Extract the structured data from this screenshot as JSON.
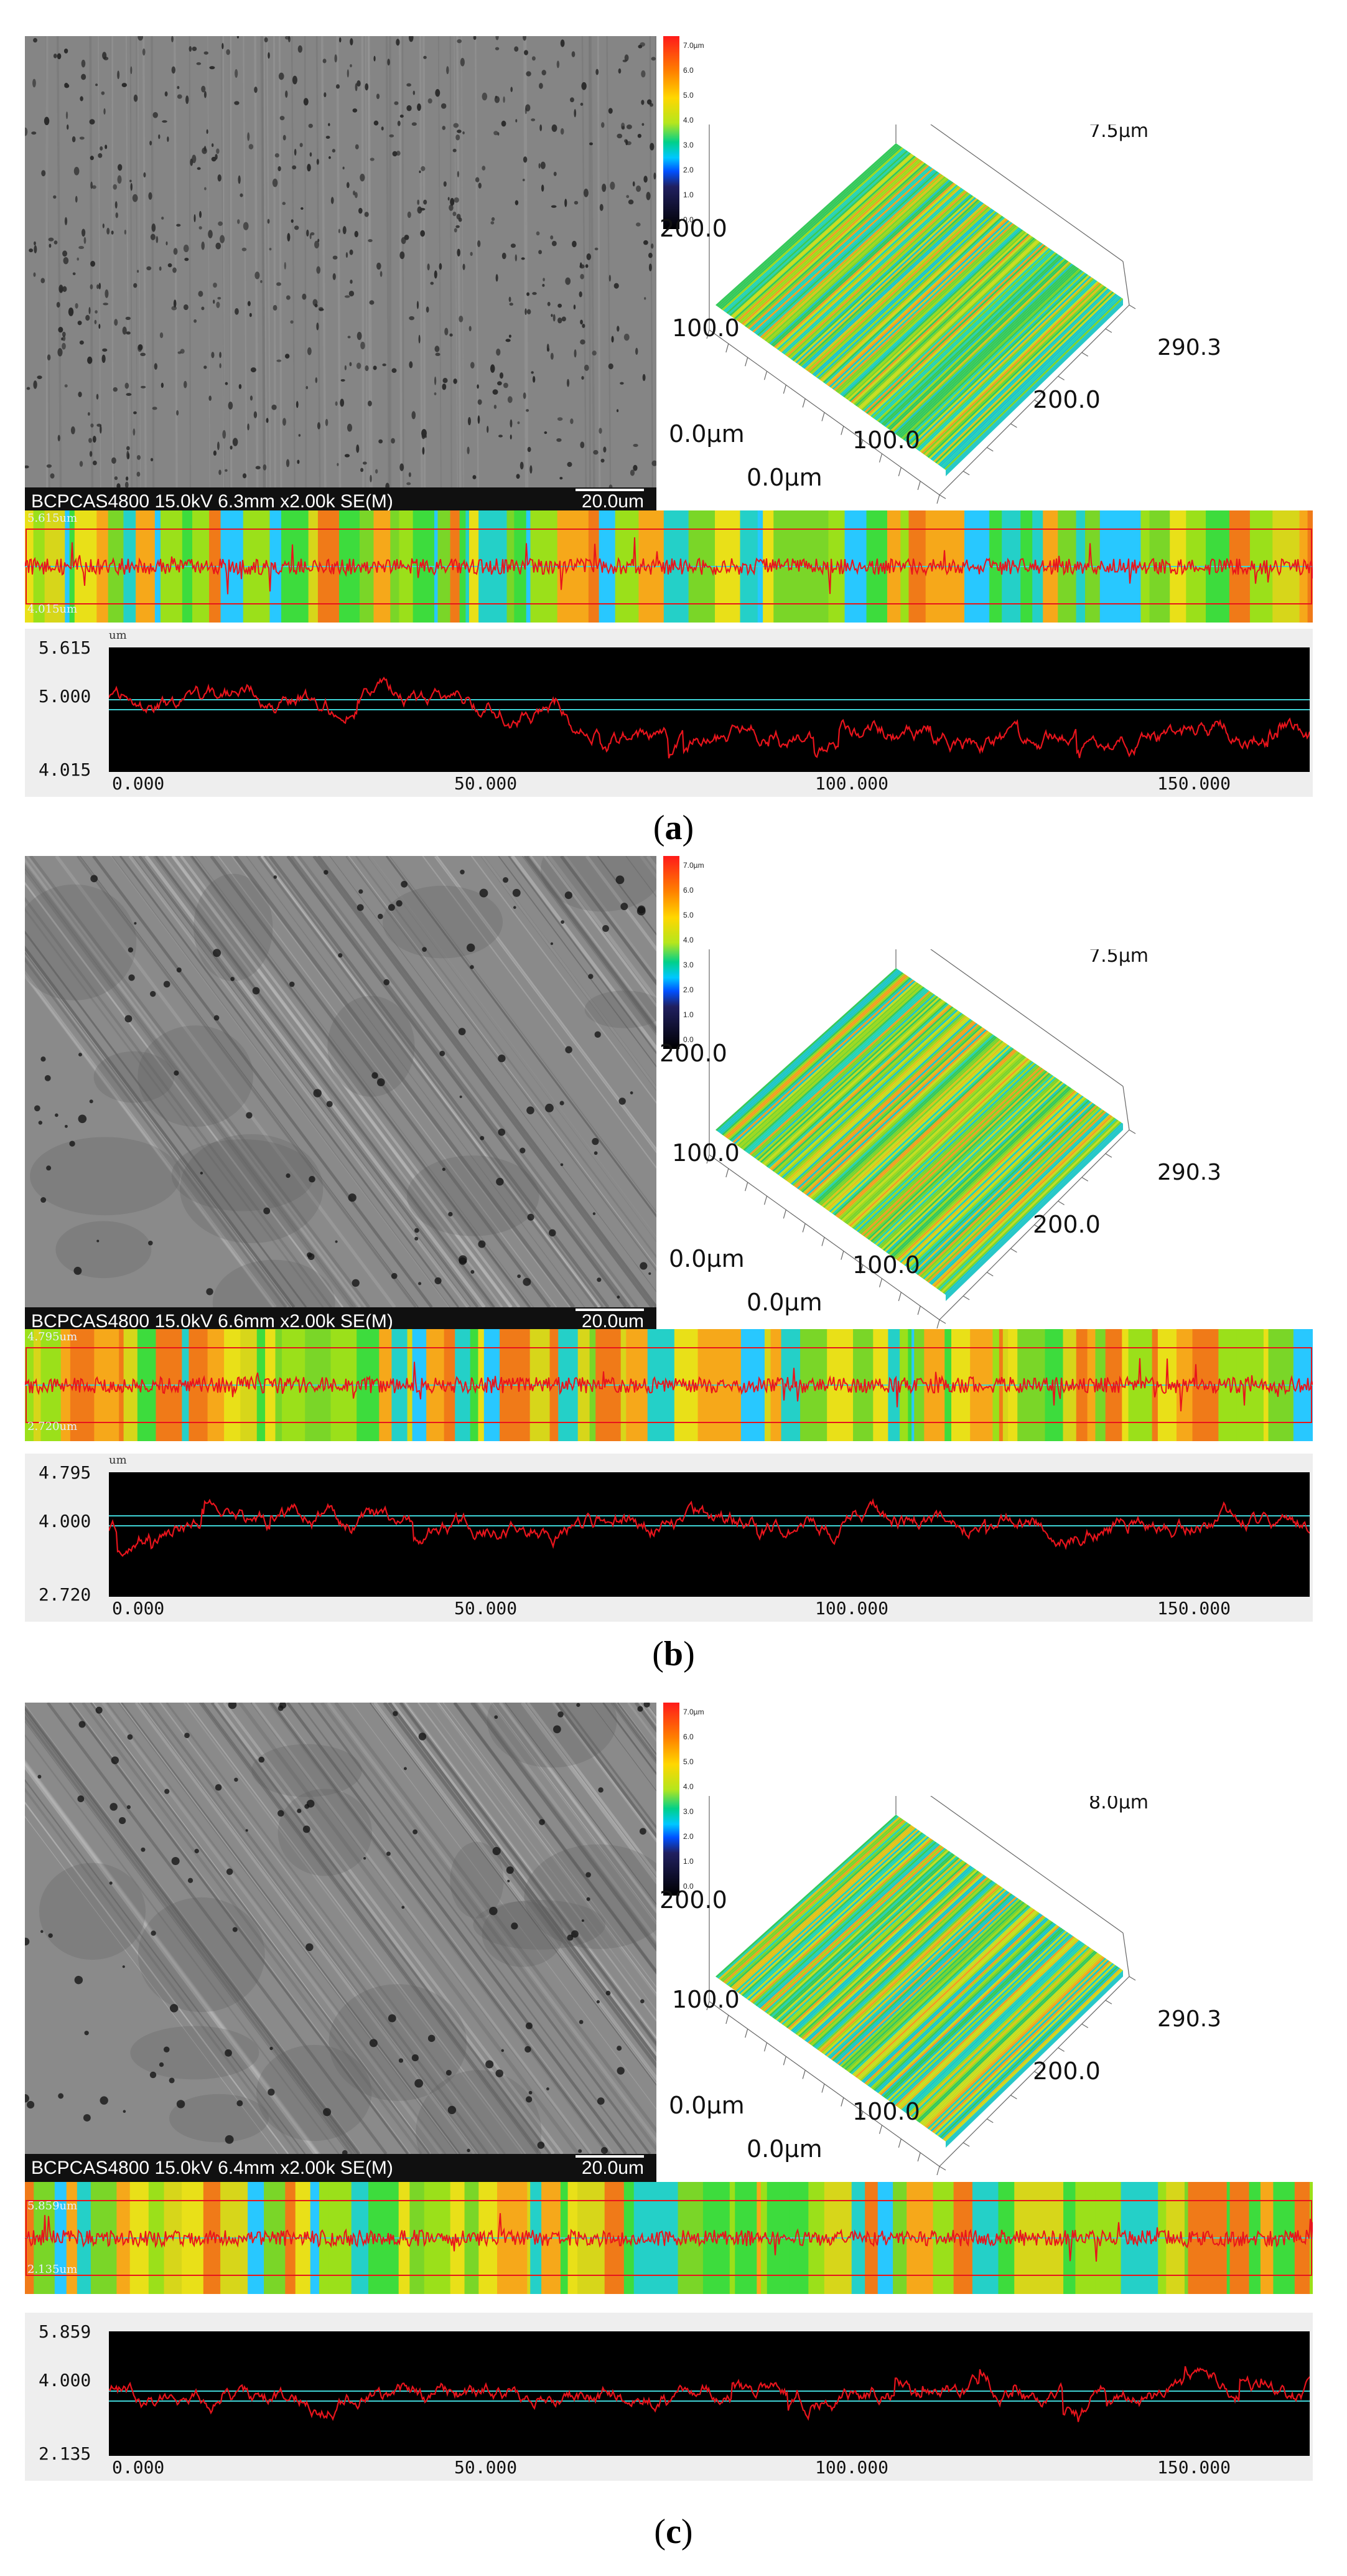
{
  "colorbar_labels": [
    "7.0µm",
    "6.0",
    "5.0",
    "4.0",
    "3.0",
    "2.0",
    "1.0",
    "0.0"
  ],
  "panels": [
    {
      "id": "a",
      "caption_letter": "a",
      "sem": {
        "info": "BCPCAS4800 15.0kV 6.3mm x2.00k SE(M)",
        "scale": "20.0um",
        "texture": "pitted"
      },
      "view3d": {
        "z_label": "7.5µm",
        "y_max": "200.0",
        "y_mid": "100.0",
        "origin": "0.0µm",
        "x_origin": "0.0µm",
        "x_mid": "100.0",
        "x_200": "200.0",
        "x_max": "290.3"
      },
      "strip": {
        "top_label": "5.615um",
        "bottom_label": "4.015um"
      },
      "graph": {
        "unit": "um",
        "y_top": "5.615",
        "y_mid": "5.000",
        "y_bottom": "4.015",
        "x_ticks": [
          "0.000",
          "50.000",
          "100.000",
          "150.000"
        ]
      }
    },
    {
      "id": "b",
      "caption_letter": "b",
      "sem": {
        "info": "BCPCAS4800 15.0kV 6.6mm x2.00k SE(M)",
        "scale": "20.0um",
        "texture": "scratched"
      },
      "view3d": {
        "z_label": "7.5µm",
        "y_max": "200.0",
        "y_mid": "100.0",
        "origin": "0.0µm",
        "x_origin": "0.0µm",
        "x_mid": "100.0",
        "x_200": "200.0",
        "x_max": "290.3"
      },
      "strip": {
        "top_label": "4.795um",
        "bottom_label": "2.720um"
      },
      "graph": {
        "unit": "um",
        "y_top": "4.795",
        "y_mid": "4.000",
        "y_bottom": "2.720",
        "x_ticks": [
          "0.000",
          "50.000",
          "100.000",
          "150.000"
        ]
      }
    },
    {
      "id": "c",
      "caption_letter": "c",
      "sem": {
        "info": "BCPCAS4800 15.0kV 6.4mm x2.00k SE(M)",
        "scale": "20.0um",
        "texture": "scratched"
      },
      "view3d": {
        "z_label": "8.0µm",
        "y_max": "200.0",
        "y_mid": "100.0",
        "origin": "0.0µm",
        "x_origin": "0.0µm",
        "x_mid": "100.0",
        "x_200": "200.0",
        "x_max": "290.3"
      },
      "strip": {
        "top_label": "5.859um",
        "bottom_label": "2.135um"
      },
      "graph": {
        "unit": "um",
        "y_top": "5.859",
        "y_mid": "4.000",
        "y_bottom": "2.135",
        "x_ticks": [
          "0.000",
          "50.000",
          "100.000",
          "150.000"
        ]
      }
    }
  ],
  "colors": {
    "profile_line": "#e8141c",
    "reference_line": "#3fd3d6",
    "graph_bg": "#000000"
  }
}
